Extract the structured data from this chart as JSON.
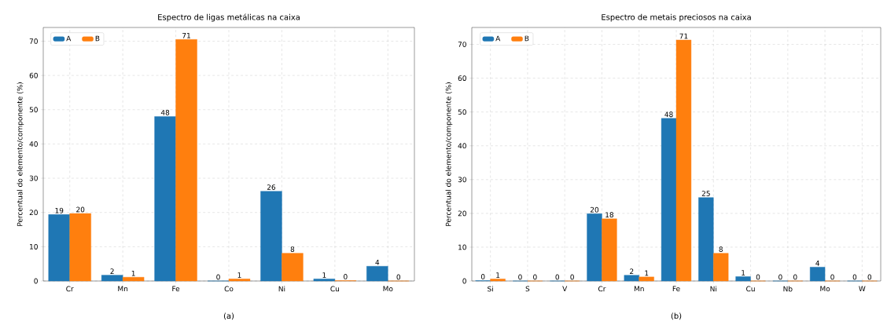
{
  "chart_data": [
    {
      "type": "bar",
      "title": "Espectro de ligas metálicas na caixa",
      "ylabel": "Percentual do elemento/componente (%)",
      "categories": [
        "Cr",
        "Mn",
        "Fe",
        "Co",
        "Ni",
        "Cu",
        "Mo"
      ],
      "series": [
        {
          "name": "A",
          "color": "#1f77b4",
          "values": [
            19.4,
            1.7,
            48,
            0,
            26.2,
            0.6,
            4.3
          ],
          "value_labels": [
            "19",
            "2",
            "48",
            "0",
            "26",
            "1",
            "4"
          ]
        },
        {
          "name": "B",
          "color": "#ff7f0e",
          "values": [
            19.7,
            1.1,
            70.5,
            0.6,
            8.1,
            0.1,
            0
          ],
          "value_labels": [
            "20",
            "1",
            "71",
            "1",
            "8",
            "0",
            "0"
          ]
        }
      ],
      "ylim": [
        0,
        74
      ],
      "yticks": [
        0,
        10,
        20,
        30,
        40,
        50,
        60,
        70
      ],
      "grid": true,
      "legend": "top left",
      "annotations": [
        "(a)"
      ]
    },
    {
      "type": "bar",
      "title": "Espectro de metais preciosos na caixa",
      "ylabel": "Percentual do elemento/componente (%)",
      "categories": [
        "Si",
        "S",
        "V",
        "Cr",
        "Mn",
        "Fe",
        "Ni",
        "Cu",
        "Nb",
        "Mo",
        "W"
      ],
      "series": [
        {
          "name": "A",
          "color": "#1f77b4",
          "values": [
            0.1,
            0,
            0,
            19.9,
            1.7,
            48.1,
            24.7,
            1.3,
            0,
            4.1,
            0
          ],
          "value_labels": [
            "0",
            "0",
            "0",
            "20",
            "2",
            "48",
            "25",
            "1",
            "0",
            "4",
            "0"
          ]
        },
        {
          "name": "B",
          "color": "#ff7f0e",
          "values": [
            0.6,
            0,
            0,
            18.4,
            1.2,
            71.3,
            8.2,
            0,
            0,
            0,
            0
          ],
          "value_labels": [
            "1",
            "0",
            "0",
            "18",
            "1",
            "71",
            "8",
            "0",
            "0",
            "0",
            "0"
          ]
        }
      ],
      "ylim": [
        0,
        75
      ],
      "yticks": [
        0,
        10,
        20,
        30,
        40,
        50,
        60,
        70
      ],
      "grid": true,
      "legend": "top left",
      "annotations": [
        "(b)"
      ]
    }
  ]
}
